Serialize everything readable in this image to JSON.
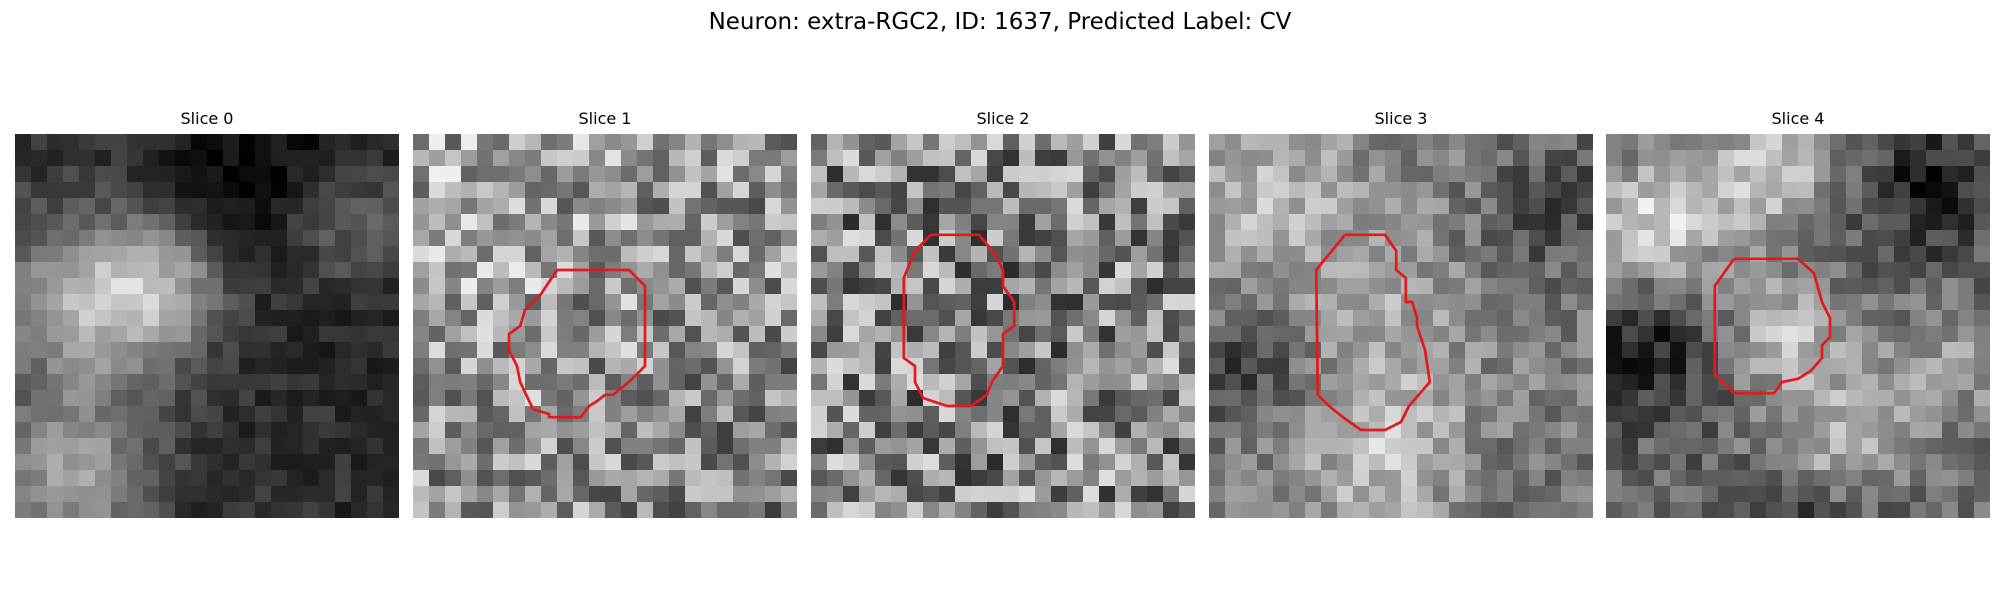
{
  "figure": {
    "suptitle": "Neuron: extra-RGC2, ID: 1637, Predicted Label: CV",
    "contour_color": "#e31a1c",
    "colormap": "gray",
    "grid_resolution": 24
  },
  "panels": [
    {
      "title": "Slice 0",
      "style": "dark-cloud",
      "contour": []
    },
    {
      "title": "Slice 1",
      "style": "noisy-bright",
      "contour": [
        [
          9.0,
          8.5
        ],
        [
          13.5,
          8.5
        ],
        [
          14.5,
          9.5
        ],
        [
          14.5,
          14.5
        ],
        [
          13.5,
          15.5
        ],
        [
          12.5,
          16.3
        ],
        [
          12.0,
          16.3
        ],
        [
          11.5,
          16.7
        ],
        [
          11.0,
          17.0
        ],
        [
          10.5,
          17.7
        ],
        [
          8.5,
          17.7
        ],
        [
          8.5,
          17.5
        ],
        [
          7.5,
          17.2
        ],
        [
          6.7,
          15.5
        ],
        [
          6.5,
          14.5
        ],
        [
          6.0,
          13.5
        ],
        [
          6.0,
          12.5
        ],
        [
          6.7,
          12.0
        ],
        [
          7.0,
          11.0
        ],
        [
          8.0,
          10.0
        ],
        [
          9.0,
          8.5
        ]
      ]
    },
    {
      "title": "Slice 2",
      "style": "noisy-mid",
      "contour": [
        [
          7.5,
          6.3
        ],
        [
          10.5,
          6.3
        ],
        [
          11.5,
          7.5
        ],
        [
          12.0,
          8.5
        ],
        [
          12.0,
          9.5
        ],
        [
          12.7,
          10.5
        ],
        [
          12.7,
          12.0
        ],
        [
          12.0,
          12.5
        ],
        [
          12.0,
          14.5
        ],
        [
          11.3,
          15.5
        ],
        [
          11.0,
          16.3
        ],
        [
          10.0,
          17.0
        ],
        [
          8.5,
          17.0
        ],
        [
          7.0,
          16.5
        ],
        [
          6.5,
          15.5
        ],
        [
          6.5,
          14.5
        ],
        [
          5.8,
          14.0
        ],
        [
          5.8,
          9.0
        ],
        [
          6.5,
          7.3
        ],
        [
          7.5,
          6.3
        ]
      ]
    },
    {
      "title": "Slice 3",
      "style": "cloudy-mixed",
      "contour": [
        [
          8.5,
          6.3
        ],
        [
          11.0,
          6.3
        ],
        [
          11.7,
          7.3
        ],
        [
          11.7,
          8.5
        ],
        [
          12.3,
          9.0
        ],
        [
          12.3,
          10.5
        ],
        [
          12.7,
          10.5
        ],
        [
          13.0,
          11.5
        ],
        [
          13.0,
          12.0
        ],
        [
          13.5,
          13.5
        ],
        [
          13.8,
          15.5
        ],
        [
          12.5,
          17.0
        ],
        [
          12.0,
          18.0
        ],
        [
          11.0,
          18.5
        ],
        [
          9.5,
          18.5
        ],
        [
          8.5,
          17.8
        ],
        [
          7.5,
          17.0
        ],
        [
          6.8,
          16.3
        ],
        [
          6.7,
          8.5
        ],
        [
          8.5,
          6.3
        ]
      ]
    },
    {
      "title": "Slice 4",
      "style": "bright-blobs",
      "contour": [
        [
          8.0,
          7.8
        ],
        [
          12.0,
          7.8
        ],
        [
          13.0,
          8.7
        ],
        [
          13.5,
          10.5
        ],
        [
          14.0,
          11.5
        ],
        [
          14.0,
          12.7
        ],
        [
          13.5,
          13.2
        ],
        [
          13.5,
          14.0
        ],
        [
          12.8,
          14.8
        ],
        [
          12.0,
          15.3
        ],
        [
          11.0,
          15.5
        ],
        [
          10.5,
          16.2
        ],
        [
          9.8,
          16.2
        ],
        [
          9.5,
          16.2
        ],
        [
          8.0,
          16.2
        ],
        [
          6.8,
          15.0
        ],
        [
          6.8,
          9.5
        ],
        [
          8.0,
          7.8
        ]
      ]
    }
  ]
}
